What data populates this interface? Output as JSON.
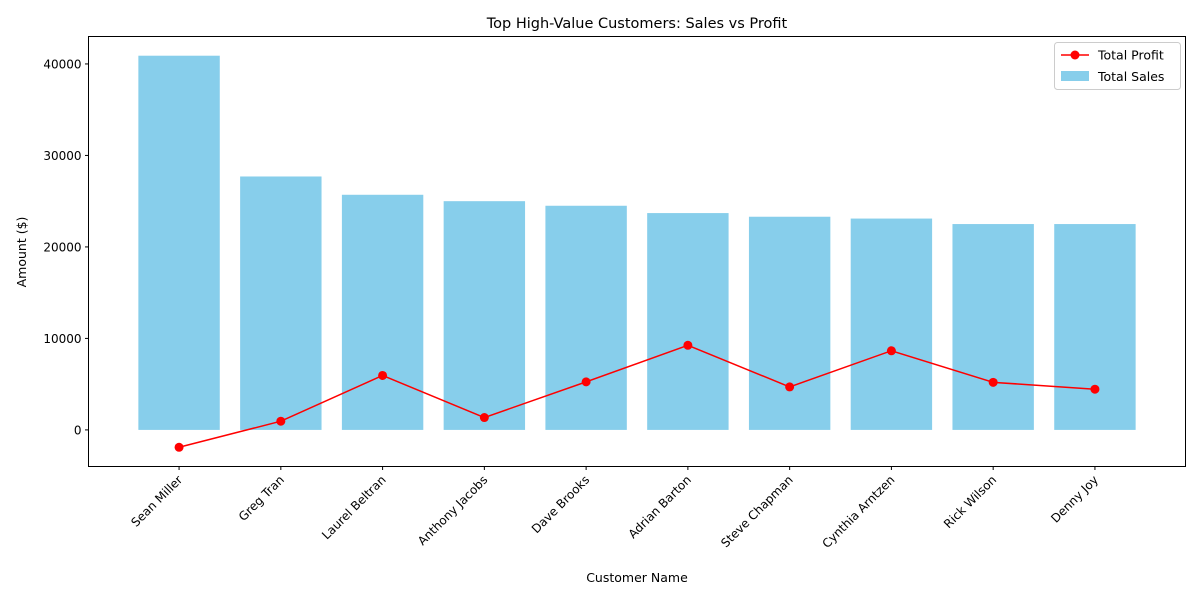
{
  "chart_data": {
    "type": "bar",
    "title": "Top High-Value Customers: Sales vs Profit",
    "xlabel": "Customer Name",
    "ylabel": "Amount ($)",
    "categories": [
      "Sean Miller",
      "Greg Tran",
      "Laurel Beltran",
      "Anthony Jacobs",
      "Dave Brooks",
      "Adrian Barton",
      "Steve Chapman",
      "Cynthia Arntzen",
      "Rick Wilson",
      "Denny Joy"
    ],
    "ylim": [
      -4000,
      43000
    ],
    "yticks": [
      0,
      10000,
      20000,
      30000,
      40000
    ],
    "grid": false,
    "legend_position": "top-right",
    "series": [
      {
        "name": "Total Sales",
        "type": "bar",
        "color": "#87ceeb",
        "values": [
          40900,
          27700,
          25700,
          25000,
          24500,
          23700,
          23300,
          23100,
          22500,
          22500
        ]
      },
      {
        "name": "Total Profit",
        "type": "line",
        "color": "#ff0000",
        "marker": "circle",
        "values": [
          -1900,
          950,
          5950,
          1350,
          5250,
          9250,
          4700,
          8650,
          5200,
          4450
        ]
      }
    ]
  }
}
